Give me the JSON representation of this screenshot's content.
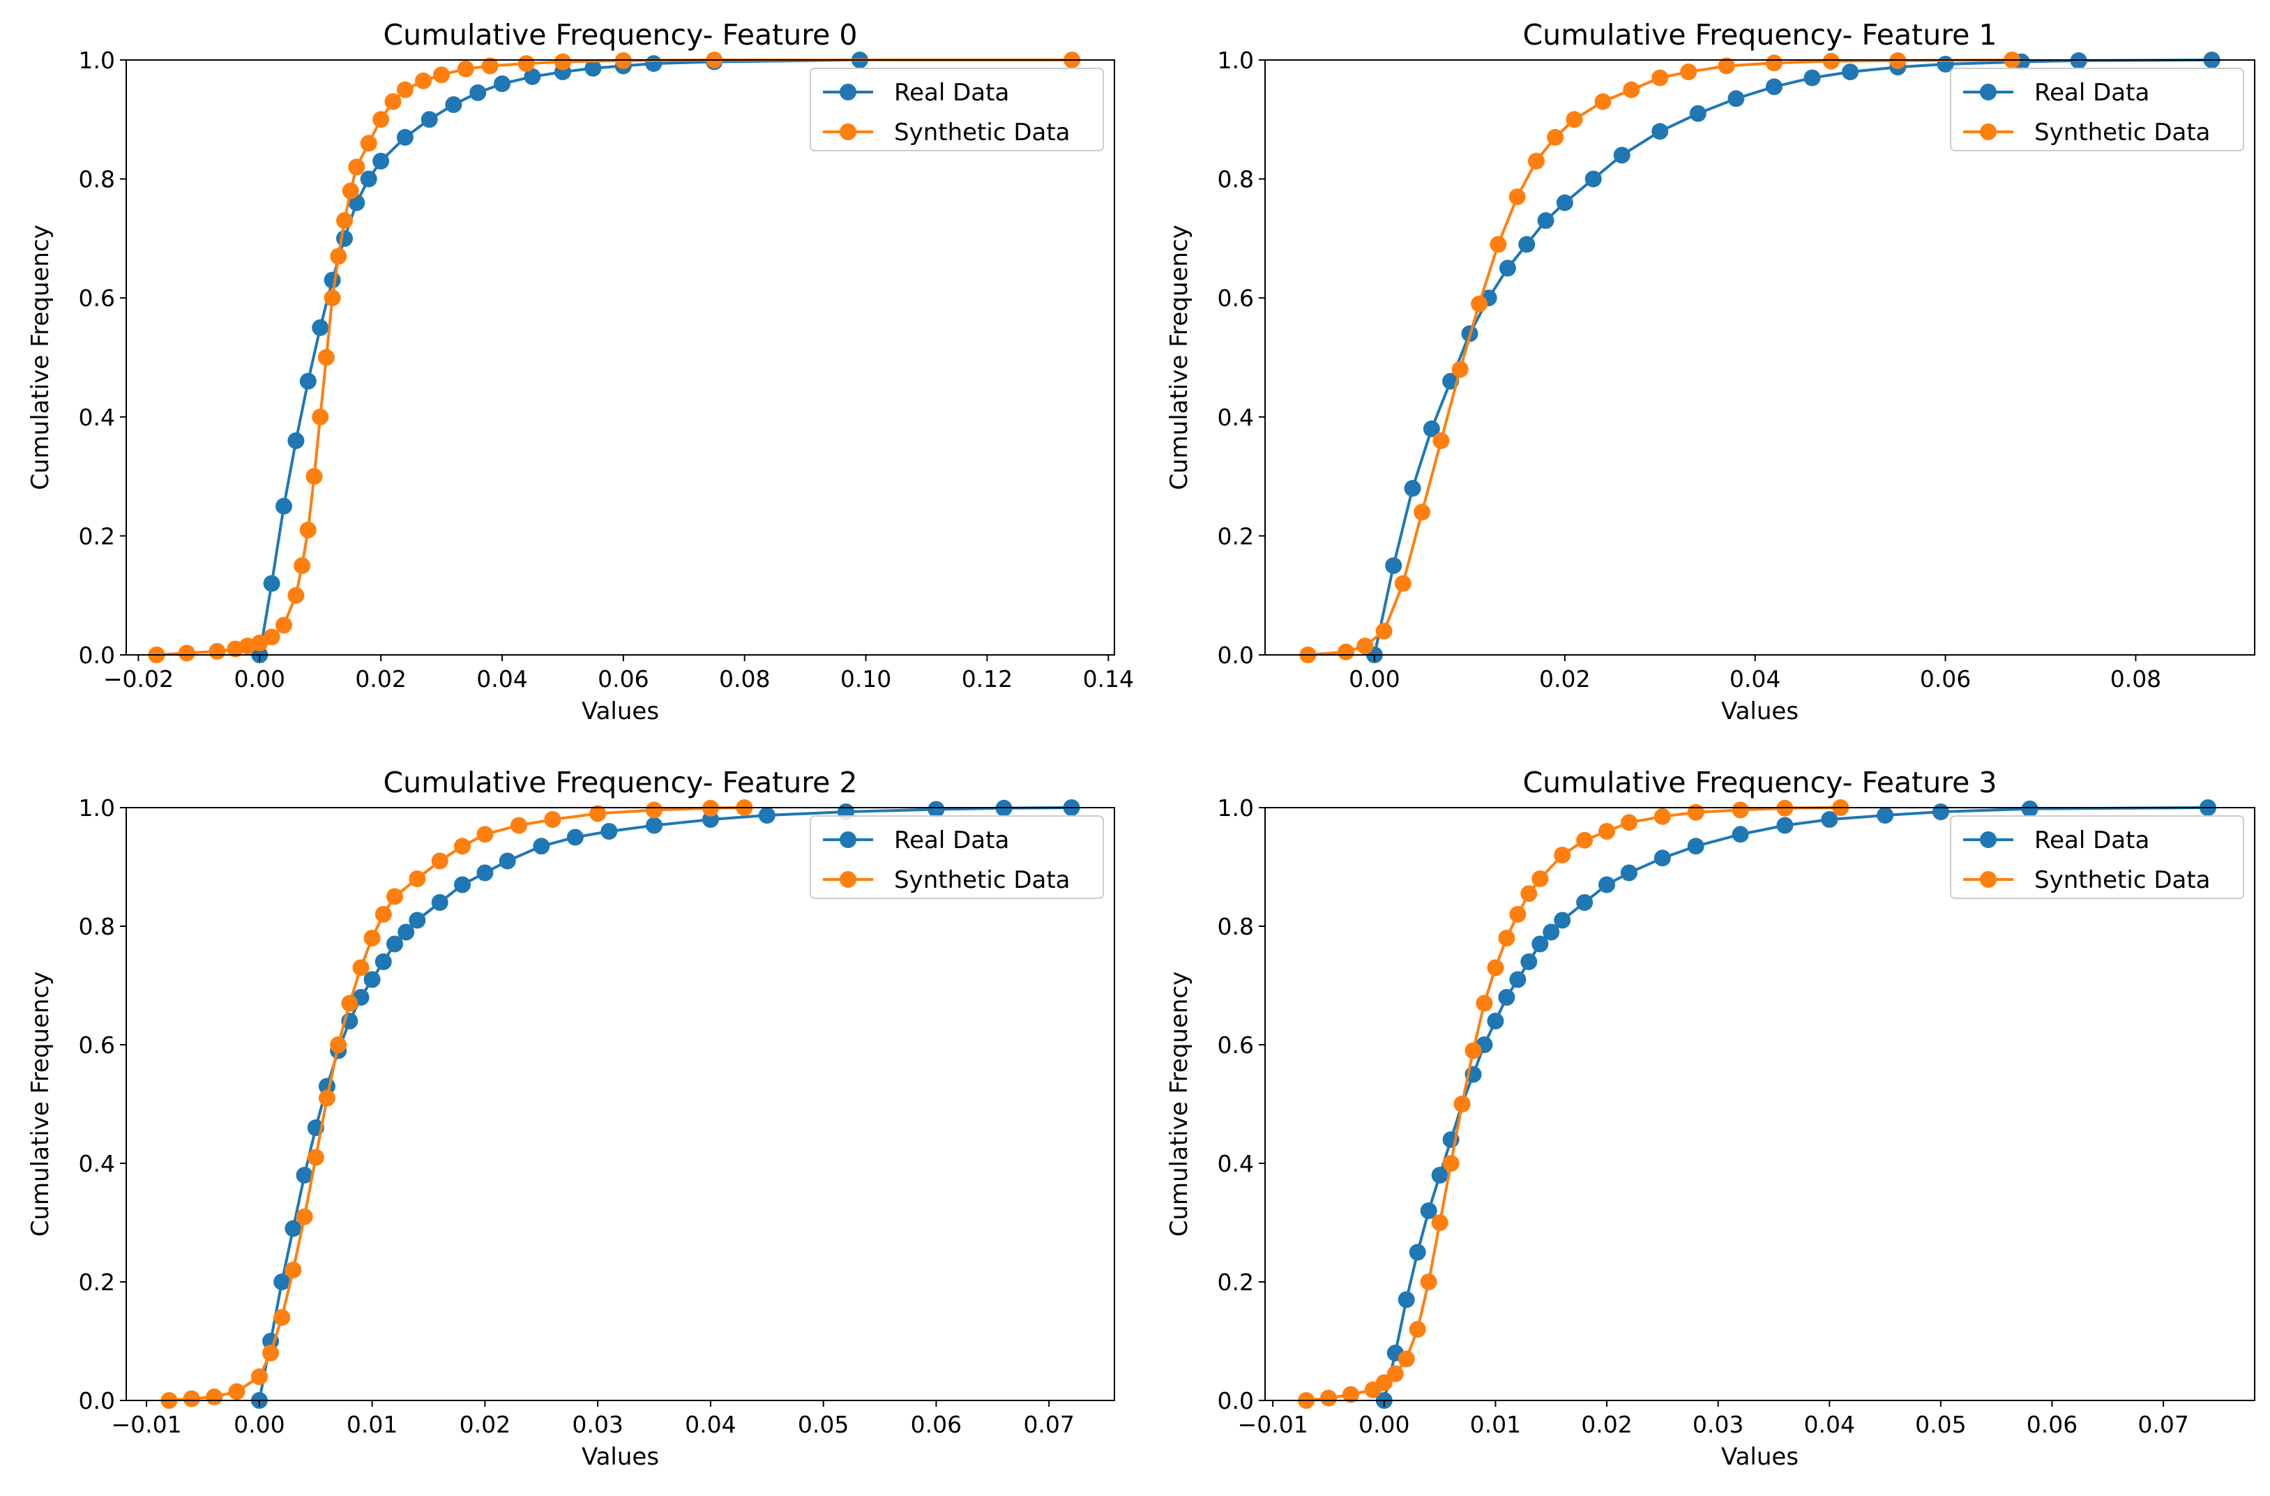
{
  "chart_data": [
    {
      "type": "line",
      "title": "Cumulative Frequency- Feature 0",
      "xlabel": "Values",
      "ylabel": "Cumulative Frequency",
      "xlim": [
        -0.022,
        0.141
      ],
      "ylim": [
        0,
        1
      ],
      "xticks": [
        -0.02,
        0.0,
        0.02,
        0.04,
        0.06,
        0.08,
        0.1,
        0.12,
        0.14
      ],
      "xtick_labels": [
        "−0.02",
        "0.00",
        "0.02",
        "0.04",
        "0.06",
        "0.08",
        "0.10",
        "0.12",
        "0.14"
      ],
      "yticks": [
        0.0,
        0.2,
        0.4,
        0.6,
        0.8,
        1.0
      ],
      "ytick_labels": [
        "0.0",
        "0.2",
        "0.4",
        "0.6",
        "0.8",
        "1.0"
      ],
      "legend_position": "top-right",
      "series": [
        {
          "name": "Real Data",
          "color": "#1f77b4",
          "x": [
            0.0,
            0.002,
            0.004,
            0.006,
            0.008,
            0.01,
            0.012,
            0.014,
            0.016,
            0.018,
            0.02,
            0.024,
            0.028,
            0.032,
            0.036,
            0.04,
            0.045,
            0.05,
            0.055,
            0.06,
            0.065,
            0.075,
            0.099
          ],
          "y": [
            0.0,
            0.12,
            0.25,
            0.36,
            0.46,
            0.55,
            0.63,
            0.7,
            0.76,
            0.8,
            0.83,
            0.87,
            0.9,
            0.925,
            0.945,
            0.96,
            0.972,
            0.98,
            0.986,
            0.99,
            0.994,
            0.997,
            1.0
          ]
        },
        {
          "name": "Synthetic Data",
          "color": "#ff7f0e",
          "x": [
            -0.017,
            -0.012,
            -0.007,
            -0.004,
            -0.002,
            0.0,
            0.002,
            0.004,
            0.006,
            0.007,
            0.008,
            0.009,
            0.01,
            0.011,
            0.012,
            0.013,
            0.014,
            0.015,
            0.016,
            0.018,
            0.02,
            0.022,
            0.024,
            0.027,
            0.03,
            0.034,
            0.038,
            0.044,
            0.05,
            0.06,
            0.075,
            0.134
          ],
          "y": [
            0.0,
            0.003,
            0.006,
            0.01,
            0.015,
            0.02,
            0.03,
            0.05,
            0.1,
            0.15,
            0.21,
            0.3,
            0.4,
            0.5,
            0.6,
            0.67,
            0.73,
            0.78,
            0.82,
            0.86,
            0.9,
            0.93,
            0.95,
            0.965,
            0.975,
            0.985,
            0.99,
            0.994,
            0.997,
            0.999,
            1.0,
            1.0
          ]
        }
      ]
    },
    {
      "type": "line",
      "title": "Cumulative Frequency- Feature 1",
      "xlabel": "Values",
      "ylabel": "Cumulative Frequency",
      "xlim": [
        -0.0115,
        0.0925
      ],
      "ylim": [
        0,
        1
      ],
      "xticks": [
        0.0,
        0.02,
        0.04,
        0.06,
        0.08
      ],
      "xtick_labels": [
        "0.00",
        "0.02",
        "0.04",
        "0.06",
        "0.08"
      ],
      "yticks": [
        0.0,
        0.2,
        0.4,
        0.6,
        0.8,
        1.0
      ],
      "ytick_labels": [
        "0.0",
        "0.2",
        "0.4",
        "0.6",
        "0.8",
        "1.0"
      ],
      "legend_position": "top-right",
      "series": [
        {
          "name": "Real Data",
          "color": "#1f77b4",
          "x": [
            0.0,
            0.002,
            0.004,
            0.006,
            0.008,
            0.01,
            0.012,
            0.014,
            0.016,
            0.018,
            0.02,
            0.023,
            0.026,
            0.03,
            0.034,
            0.038,
            0.042,
            0.046,
            0.05,
            0.055,
            0.06,
            0.068,
            0.074,
            0.088
          ],
          "y": [
            0.0,
            0.15,
            0.28,
            0.38,
            0.46,
            0.54,
            0.6,
            0.65,
            0.69,
            0.73,
            0.76,
            0.8,
            0.84,
            0.88,
            0.91,
            0.935,
            0.955,
            0.97,
            0.98,
            0.988,
            0.993,
            0.997,
            0.999,
            1.0
          ]
        },
        {
          "name": "Synthetic Data",
          "color": "#ff7f0e",
          "x": [
            -0.007,
            -0.003,
            -0.001,
            0.001,
            0.003,
            0.005,
            0.007,
            0.009,
            0.011,
            0.013,
            0.015,
            0.017,
            0.019,
            0.021,
            0.024,
            0.027,
            0.03,
            0.033,
            0.037,
            0.042,
            0.048,
            0.055,
            0.067
          ],
          "y": [
            0.0,
            0.005,
            0.015,
            0.04,
            0.12,
            0.24,
            0.36,
            0.48,
            0.59,
            0.69,
            0.77,
            0.83,
            0.87,
            0.9,
            0.93,
            0.95,
            0.97,
            0.98,
            0.99,
            0.995,
            0.998,
            0.999,
            1.0
          ]
        }
      ]
    },
    {
      "type": "line",
      "title": "Cumulative Frequency- Feature 2",
      "xlabel": "Values",
      "ylabel": "Cumulative Frequency",
      "xlim": [
        -0.0118,
        0.0758
      ],
      "ylim": [
        0,
        1
      ],
      "xticks": [
        -0.01,
        0.0,
        0.01,
        0.02,
        0.03,
        0.04,
        0.05,
        0.06,
        0.07
      ],
      "xtick_labels": [
        "−0.01",
        "0.00",
        "0.01",
        "0.02",
        "0.03",
        "0.04",
        "0.05",
        "0.06",
        "0.07"
      ],
      "yticks": [
        0.0,
        0.2,
        0.4,
        0.6,
        0.8,
        1.0
      ],
      "ytick_labels": [
        "0.0",
        "0.2",
        "0.4",
        "0.6",
        "0.8",
        "1.0"
      ],
      "legend_position": "top-right",
      "series": [
        {
          "name": "Real Data",
          "color": "#1f77b4",
          "x": [
            0.0,
            0.001,
            0.002,
            0.003,
            0.004,
            0.005,
            0.006,
            0.007,
            0.008,
            0.009,
            0.01,
            0.011,
            0.012,
            0.013,
            0.014,
            0.016,
            0.018,
            0.02,
            0.022,
            0.025,
            0.028,
            0.031,
            0.035,
            0.04,
            0.045,
            0.052,
            0.06,
            0.066,
            0.072
          ],
          "y": [
            0.0,
            0.1,
            0.2,
            0.29,
            0.38,
            0.46,
            0.53,
            0.59,
            0.64,
            0.68,
            0.71,
            0.74,
            0.77,
            0.79,
            0.81,
            0.84,
            0.87,
            0.89,
            0.91,
            0.935,
            0.95,
            0.96,
            0.97,
            0.98,
            0.987,
            0.993,
            0.997,
            0.999,
            1.0
          ]
        },
        {
          "name": "Synthetic Data",
          "color": "#ff7f0e",
          "x": [
            -0.008,
            -0.006,
            -0.004,
            -0.002,
            0.0,
            0.001,
            0.002,
            0.003,
            0.004,
            0.005,
            0.006,
            0.007,
            0.008,
            0.009,
            0.01,
            0.011,
            0.012,
            0.014,
            0.016,
            0.018,
            0.02,
            0.023,
            0.026,
            0.03,
            0.035,
            0.04,
            0.043
          ],
          "y": [
            0.0,
            0.003,
            0.006,
            0.015,
            0.04,
            0.08,
            0.14,
            0.22,
            0.31,
            0.41,
            0.51,
            0.6,
            0.67,
            0.73,
            0.78,
            0.82,
            0.85,
            0.88,
            0.91,
            0.935,
            0.955,
            0.97,
            0.98,
            0.99,
            0.996,
            0.999,
            1.0
          ]
        }
      ]
    },
    {
      "type": "line",
      "title": "Cumulative Frequency- Feature 3",
      "xlabel": "Values",
      "ylabel": "Cumulative Frequency",
      "xlim": [
        -0.0107,
        0.0782
      ],
      "ylim": [
        0,
        1
      ],
      "xticks": [
        -0.01,
        0.0,
        0.01,
        0.02,
        0.03,
        0.04,
        0.05,
        0.06,
        0.07
      ],
      "xtick_labels": [
        "−0.01",
        "0.00",
        "0.01",
        "0.02",
        "0.03",
        "0.04",
        "0.05",
        "0.06",
        "0.07"
      ],
      "yticks": [
        0.0,
        0.2,
        0.4,
        0.6,
        0.8,
        1.0
      ],
      "ytick_labels": [
        "0.0",
        "0.2",
        "0.4",
        "0.6",
        "0.8",
        "1.0"
      ],
      "legend_position": "top-right",
      "series": [
        {
          "name": "Real Data",
          "color": "#1f77b4",
          "x": [
            0.0,
            0.001,
            0.002,
            0.003,
            0.004,
            0.005,
            0.006,
            0.007,
            0.008,
            0.009,
            0.01,
            0.011,
            0.012,
            0.013,
            0.014,
            0.015,
            0.016,
            0.018,
            0.02,
            0.022,
            0.025,
            0.028,
            0.032,
            0.036,
            0.04,
            0.045,
            0.05,
            0.058,
            0.074
          ],
          "y": [
            0.0,
            0.08,
            0.17,
            0.25,
            0.32,
            0.38,
            0.44,
            0.5,
            0.55,
            0.6,
            0.64,
            0.68,
            0.71,
            0.74,
            0.77,
            0.79,
            0.81,
            0.84,
            0.87,
            0.89,
            0.915,
            0.935,
            0.955,
            0.97,
            0.98,
            0.987,
            0.993,
            0.998,
            1.0
          ]
        },
        {
          "name": "Synthetic Data",
          "color": "#ff7f0e",
          "x": [
            -0.007,
            -0.005,
            -0.003,
            -0.001,
            0.0,
            0.001,
            0.002,
            0.003,
            0.004,
            0.005,
            0.006,
            0.007,
            0.008,
            0.009,
            0.01,
            0.011,
            0.012,
            0.013,
            0.014,
            0.016,
            0.018,
            0.02,
            0.022,
            0.025,
            0.028,
            0.032,
            0.036,
            0.041
          ],
          "y": [
            0.0,
            0.004,
            0.01,
            0.018,
            0.03,
            0.045,
            0.07,
            0.12,
            0.2,
            0.3,
            0.4,
            0.5,
            0.59,
            0.67,
            0.73,
            0.78,
            0.82,
            0.855,
            0.88,
            0.92,
            0.945,
            0.96,
            0.975,
            0.985,
            0.992,
            0.996,
            0.999,
            1.0
          ]
        }
      ]
    }
  ]
}
